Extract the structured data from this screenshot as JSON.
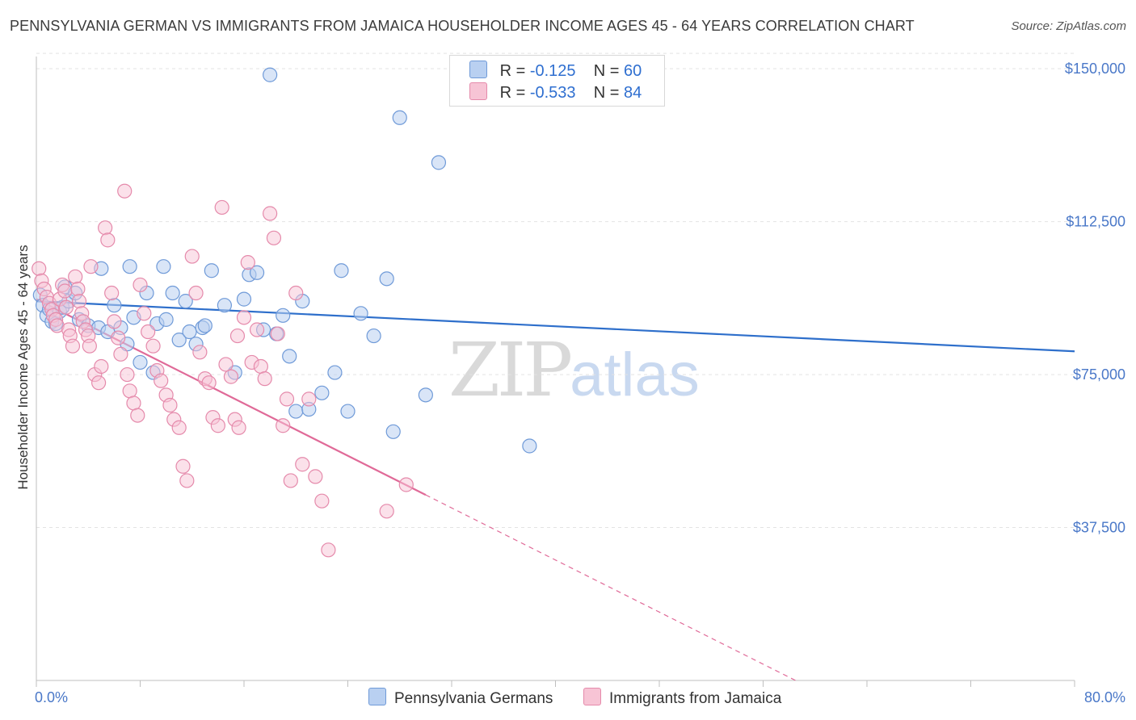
{
  "header": {
    "title": "PENNSYLVANIA GERMAN VS IMMIGRANTS FROM JAMAICA HOUSEHOLDER INCOME AGES 45 - 64 YEARS CORRELATION CHART",
    "source": "Source: ZipAtlas.com"
  },
  "watermark": {
    "zip": "ZIP",
    "atlas": "atlas"
  },
  "legend": {
    "rows": [
      {
        "r_label": "R =",
        "r_value": "-0.125",
        "n_label": "N =",
        "n_value": "60"
      },
      {
        "r_label": "R =",
        "r_value": "-0.533",
        "n_label": "N =",
        "n_value": "84"
      }
    ]
  },
  "bottom_legend": {
    "series_a": "Pennsylvania Germans",
    "series_b": "Immigrants from Jamaica"
  },
  "colors": {
    "blue_fill": "#b9d0f1",
    "blue_stroke": "#6f9ad8",
    "blue_line": "#2e6fcb",
    "pink_fill": "#f7c4d5",
    "pink_stroke": "#e58aab",
    "pink_line": "#e06a98",
    "axis_text": "#4a78c8"
  },
  "chart_data": {
    "type": "scatter",
    "title": "PENNSYLVANIA GERMAN VS IMMIGRANTS FROM JAMAICA HOUSEHOLDER INCOME AGES 45 - 64 YEARS CORRELATION CHART",
    "xlabel": "",
    "ylabel": "Householder Income Ages 45 - 64 years",
    "x_ticks": [
      "0.0%",
      "80.0%"
    ],
    "y_ticks": [
      "$37,500",
      "$75,000",
      "$112,500",
      "$150,000"
    ],
    "xlim": [
      0,
      80
    ],
    "ylim": [
      0,
      153000
    ],
    "grid": true,
    "legend_position": "top-center",
    "series": [
      {
        "name": "Pennsylvania Germans",
        "color": "#b9d0f1",
        "r": -0.125,
        "n": 60,
        "trend": {
          "x": [
            0,
            80
          ],
          "y": [
            93000,
            80700
          ]
        },
        "points": [
          [
            0.3,
            94500
          ],
          [
            0.5,
            92000
          ],
          [
            0.8,
            89500
          ],
          [
            1.0,
            91000
          ],
          [
            1.2,
            88000
          ],
          [
            1.5,
            87500
          ],
          [
            1.8,
            90500
          ],
          [
            2.0,
            91500
          ],
          [
            2.2,
            96500
          ],
          [
            2.5,
            93000
          ],
          [
            3.0,
            95000
          ],
          [
            3.3,
            88500
          ],
          [
            4.0,
            87000
          ],
          [
            4.8,
            86500
          ],
          [
            5.0,
            101000
          ],
          [
            5.5,
            85500
          ],
          [
            6.0,
            92000
          ],
          [
            6.5,
            86500
          ],
          [
            7.0,
            82500
          ],
          [
            7.2,
            101500
          ],
          [
            7.5,
            89000
          ],
          [
            8.0,
            78000
          ],
          [
            8.5,
            95000
          ],
          [
            9.0,
            75500
          ],
          [
            9.3,
            87500
          ],
          [
            9.8,
            101500
          ],
          [
            10.0,
            88500
          ],
          [
            10.5,
            95000
          ],
          [
            11.0,
            83500
          ],
          [
            11.5,
            93000
          ],
          [
            11.8,
            85500
          ],
          [
            12.3,
            82500
          ],
          [
            12.8,
            86500
          ],
          [
            13.0,
            87000
          ],
          [
            13.5,
            100500
          ],
          [
            14.5,
            92000
          ],
          [
            15.3,
            75500
          ],
          [
            16.0,
            93500
          ],
          [
            16.4,
            99500
          ],
          [
            17.0,
            100000
          ],
          [
            17.5,
            86000
          ],
          [
            18.5,
            85000
          ],
          [
            19.0,
            89500
          ],
          [
            19.5,
            79500
          ],
          [
            20.0,
            66000
          ],
          [
            20.5,
            93000
          ],
          [
            21.0,
            66500
          ],
          [
            22.0,
            70500
          ],
          [
            23.0,
            75500
          ],
          [
            23.5,
            100500
          ],
          [
            24.0,
            66000
          ],
          [
            25.0,
            90000
          ],
          [
            26.0,
            84500
          ],
          [
            27.0,
            98500
          ],
          [
            27.5,
            61000
          ],
          [
            30.0,
            70000
          ],
          [
            38.0,
            57500
          ],
          [
            18.0,
            148500
          ],
          [
            28.0,
            138000
          ],
          [
            31.0,
            127000
          ]
        ]
      },
      {
        "name": "Immigrants from Jamaica",
        "color": "#f7c4d5",
        "r": -0.533,
        "n": 84,
        "trend": {
          "x": [
            0,
            30
          ],
          "y": [
            93500,
            45500
          ]
        },
        "trend_extended": {
          "x": [
            30,
            58.5
          ],
          "y": [
            45500,
            0
          ]
        },
        "points": [
          [
            0.2,
            101000
          ],
          [
            0.4,
            98000
          ],
          [
            0.6,
            96000
          ],
          [
            0.8,
            94000
          ],
          [
            1.0,
            92500
          ],
          [
            1.2,
            91000
          ],
          [
            1.3,
            89500
          ],
          [
            1.5,
            88500
          ],
          [
            1.6,
            87000
          ],
          [
            1.8,
            93500
          ],
          [
            2.0,
            97000
          ],
          [
            2.2,
            95500
          ],
          [
            2.3,
            91500
          ],
          [
            2.5,
            86000
          ],
          [
            2.6,
            84500
          ],
          [
            2.8,
            82000
          ],
          [
            3.0,
            99000
          ],
          [
            3.2,
            96000
          ],
          [
            3.3,
            93000
          ],
          [
            3.5,
            90000
          ],
          [
            3.6,
            88000
          ],
          [
            3.8,
            86000
          ],
          [
            4.0,
            84500
          ],
          [
            4.1,
            82000
          ],
          [
            4.2,
            101500
          ],
          [
            4.5,
            75000
          ],
          [
            4.8,
            73000
          ],
          [
            5.0,
            77000
          ],
          [
            5.3,
            111000
          ],
          [
            5.5,
            108000
          ],
          [
            5.8,
            95000
          ],
          [
            6.0,
            88000
          ],
          [
            6.3,
            84000
          ],
          [
            6.5,
            80000
          ],
          [
            6.8,
            120000
          ],
          [
            7.0,
            75000
          ],
          [
            7.2,
            71000
          ],
          [
            7.5,
            68000
          ],
          [
            7.8,
            65000
          ],
          [
            8.0,
            97000
          ],
          [
            8.3,
            90000
          ],
          [
            8.6,
            85500
          ],
          [
            9.0,
            82000
          ],
          [
            9.3,
            76000
          ],
          [
            9.6,
            73500
          ],
          [
            10.0,
            70000
          ],
          [
            10.3,
            67500
          ],
          [
            10.6,
            64000
          ],
          [
            11.0,
            62000
          ],
          [
            11.3,
            52500
          ],
          [
            11.6,
            49000
          ],
          [
            12.0,
            104000
          ],
          [
            12.3,
            95000
          ],
          [
            12.6,
            80500
          ],
          [
            13.0,
            74000
          ],
          [
            13.3,
            73000
          ],
          [
            13.6,
            64500
          ],
          [
            14.0,
            62500
          ],
          [
            14.3,
            116000
          ],
          [
            14.6,
            77500
          ],
          [
            15.0,
            74500
          ],
          [
            15.3,
            64000
          ],
          [
            15.6,
            62000
          ],
          [
            16.0,
            89000
          ],
          [
            16.3,
            102500
          ],
          [
            16.6,
            78000
          ],
          [
            17.0,
            86000
          ],
          [
            17.3,
            77000
          ],
          [
            17.6,
            74000
          ],
          [
            18.0,
            114500
          ],
          [
            18.3,
            108500
          ],
          [
            18.6,
            85000
          ],
          [
            19.0,
            62500
          ],
          [
            19.3,
            69000
          ],
          [
            19.6,
            49000
          ],
          [
            20.0,
            95000
          ],
          [
            20.5,
            53000
          ],
          [
            21.0,
            69000
          ],
          [
            21.5,
            50000
          ],
          [
            22.0,
            44000
          ],
          [
            22.5,
            32000
          ],
          [
            27.0,
            41500
          ],
          [
            28.5,
            48000
          ],
          [
            15.5,
            84500
          ]
        ]
      }
    ]
  }
}
